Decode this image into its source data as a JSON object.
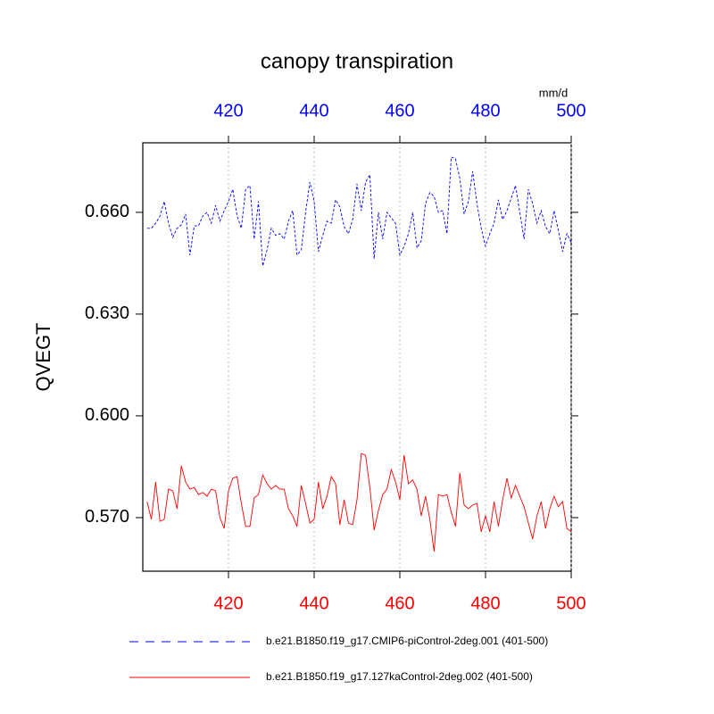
{
  "chart_data": {
    "type": "line",
    "title": "canopy transpiration",
    "ylabel": "QVEGT",
    "units": "mm/d",
    "x": [
      401,
      402,
      403,
      404,
      405,
      406,
      407,
      408,
      409,
      410,
      411,
      412,
      413,
      414,
      415,
      416,
      417,
      418,
      419,
      420,
      421,
      422,
      423,
      424,
      425,
      426,
      427,
      428,
      429,
      430,
      431,
      432,
      433,
      434,
      435,
      436,
      437,
      438,
      439,
      440,
      441,
      442,
      443,
      444,
      445,
      446,
      447,
      448,
      449,
      450,
      451,
      452,
      453,
      454,
      455,
      456,
      457,
      458,
      459,
      460,
      461,
      462,
      463,
      464,
      465,
      466,
      467,
      468,
      469,
      470,
      471,
      472,
      473,
      474,
      475,
      476,
      477,
      478,
      479,
      480,
      481,
      482,
      483,
      484,
      485,
      486,
      487,
      488,
      489,
      490,
      491,
      492,
      493,
      494,
      495,
      496,
      497,
      498,
      499,
      500
    ],
    "series": [
      {
        "name": "b.e21.B1850.f19_g17.CMIP6-piControl-2deg.001 (401-500)",
        "color": "#0000ff",
        "dash": true,
        "values": [
          0.6553,
          0.6553,
          0.6568,
          0.6589,
          0.6632,
          0.6568,
          0.6526,
          0.6553,
          0.6563,
          0.6595,
          0.6474,
          0.656,
          0.656,
          0.6589,
          0.66,
          0.6568,
          0.6621,
          0.6574,
          0.6605,
          0.6632,
          0.6668,
          0.659,
          0.6553,
          0.6668,
          0.6679,
          0.6521,
          0.6632,
          0.6442,
          0.6489,
          0.6553,
          0.6532,
          0.6537,
          0.6521,
          0.6574,
          0.6605,
          0.6474,
          0.6489,
          0.66,
          0.6689,
          0.6632,
          0.6484,
          0.6532,
          0.6574,
          0.6568,
          0.6637,
          0.6616,
          0.6558,
          0.6537,
          0.6579,
          0.6684,
          0.6605,
          0.6689,
          0.6711,
          0.6463,
          0.66,
          0.6521,
          0.66,
          0.6584,
          0.6568,
          0.6474,
          0.65,
          0.6537,
          0.66,
          0.6495,
          0.6516,
          0.6626,
          0.6658,
          0.6647,
          0.66,
          0.6605,
          0.6537,
          0.6763,
          0.6758,
          0.67,
          0.6595,
          0.6632,
          0.6721,
          0.6626,
          0.6553,
          0.65,
          0.6537,
          0.6568,
          0.6637,
          0.6579,
          0.6605,
          0.6642,
          0.6679,
          0.66,
          0.6521,
          0.6668,
          0.6626,
          0.6568,
          0.6605,
          0.6558,
          0.6537,
          0.6605,
          0.6547,
          0.6484,
          0.6537,
          0.6511
        ]
      },
      {
        "name": "b.e21.B1850.f19_g17.127kaControl-2deg.002 (401-500)",
        "color": "#ff0000",
        "dash": false,
        "values": [
          0.5747,
          0.5695,
          0.5805,
          0.5689,
          0.5695,
          0.5784,
          0.5779,
          0.5726,
          0.5853,
          0.5805,
          0.5784,
          0.5789,
          0.5768,
          0.5774,
          0.5763,
          0.5784,
          0.5779,
          0.57,
          0.5668,
          0.5779,
          0.5816,
          0.5821,
          0.5742,
          0.5674,
          0.5674,
          0.5758,
          0.5768,
          0.5826,
          0.58,
          0.5784,
          0.5795,
          0.5784,
          0.5784,
          0.5726,
          0.5705,
          0.5674,
          0.5795,
          0.5742,
          0.5684,
          0.5695,
          0.5805,
          0.5726,
          0.5763,
          0.5821,
          0.58,
          0.5679,
          0.5753,
          0.5684,
          0.5679,
          0.5753,
          0.5889,
          0.5884,
          0.5789,
          0.5663,
          0.5721,
          0.5768,
          0.5784,
          0.5842,
          0.5805,
          0.5753,
          0.5884,
          0.58,
          0.5811,
          0.5784,
          0.5705,
          0.5763,
          0.5695,
          0.56,
          0.5768,
          0.5763,
          0.5768,
          0.5716,
          0.5674,
          0.5832,
          0.5737,
          0.5726,
          0.5737,
          0.5742,
          0.5658,
          0.5705,
          0.5658,
          0.5747,
          0.5674,
          0.5753,
          0.5816,
          0.5758,
          0.5795,
          0.5763,
          0.5732,
          0.5684,
          0.5637,
          0.5705,
          0.5747,
          0.5668,
          0.5726,
          0.5763,
          0.5732,
          0.5747,
          0.5668,
          0.5658
        ]
      }
    ],
    "xlim": [
      400,
      500
    ],
    "xticks": [
      420,
      440,
      460,
      480,
      500
    ],
    "xtick_color": "#ff0000",
    "x2tick_color": "#0000ff",
    "ylim": [
      0.5542,
      0.6805
    ],
    "yticks": [
      {
        "value": 0.57,
        "label": "0.570"
      },
      {
        "value": 0.6,
        "label": "0.600"
      },
      {
        "value": 0.63,
        "label": "0.630"
      },
      {
        "value": 0.66,
        "label": "0.660"
      }
    ],
    "grid": true
  }
}
